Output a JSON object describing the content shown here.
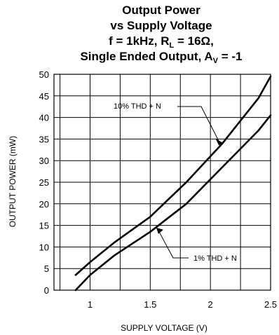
{
  "chart_data": {
    "type": "line",
    "title": {
      "line1": "Output Power",
      "line2": "vs Supply Voltage",
      "line3": {
        "pre": "f = 1kHz, R",
        "sub": "L",
        "post": " = 16Ω,"
      },
      "line4": {
        "pre": "Single Ended Output, A",
        "sub": "V",
        "post": " = -1"
      }
    },
    "xlabel": "SUPPLY VOLTAGE (V)",
    "ylabel": "OUTPUT POWER (mW)",
    "xlim": [
      0.7,
      2.5
    ],
    "ylim": [
      0,
      50
    ],
    "xticks": [
      1,
      1.5,
      2,
      2.5
    ],
    "yticks": [
      0,
      5,
      10,
      15,
      20,
      25,
      30,
      35,
      40,
      45,
      50
    ],
    "grid": true,
    "series": [
      {
        "name": "10% THD + N",
        "x": [
          0.88,
          1.0,
          1.2,
          1.5,
          1.8,
          2.1,
          2.4,
          2.5
        ],
        "y": [
          3.5,
          6.5,
          11.0,
          17.0,
          25.0,
          34.0,
          44.5,
          49.5
        ]
      },
      {
        "name": "1% THD + N",
        "x": [
          0.88,
          1.0,
          1.2,
          1.5,
          1.8,
          2.1,
          2.4,
          2.5
        ],
        "y": [
          0,
          3.5,
          8.0,
          13.5,
          20.0,
          28.5,
          37.0,
          40.5
        ]
      }
    ]
  }
}
